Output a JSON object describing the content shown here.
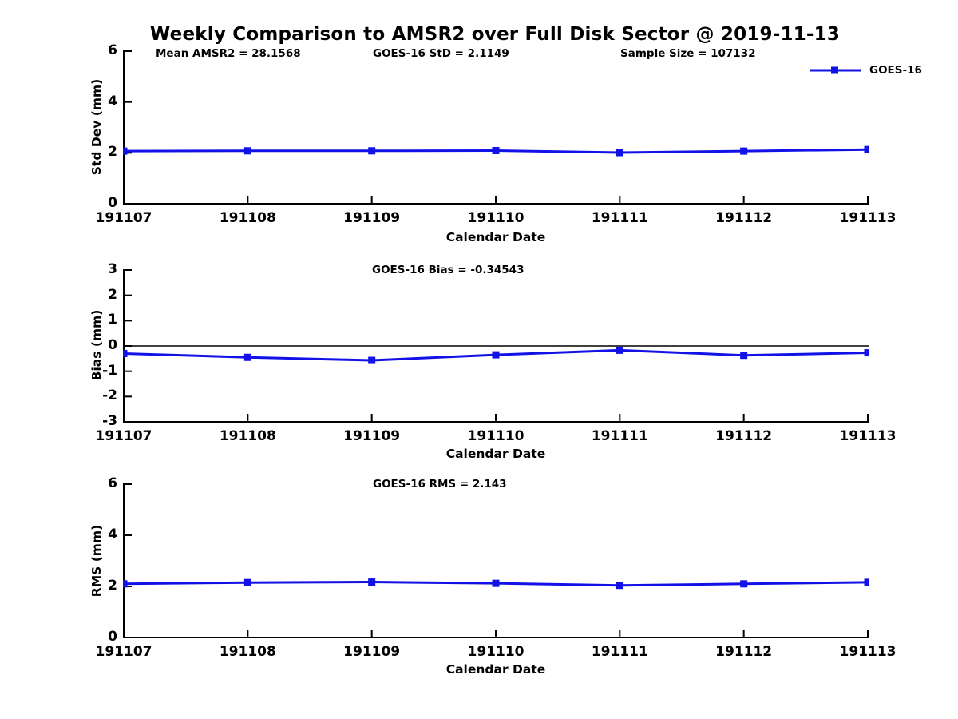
{
  "title": "Weekly Comparison to AMSR2 over Full Disk Sector @ 2019-11-13",
  "header_stats": {
    "mean_amsr2": "Mean AMSR2 = 28.1568",
    "goes_std": "GOES-16 StD = 2.1149",
    "sample_size": "Sample Size = 107132"
  },
  "legend": {
    "label": "GOES-16"
  },
  "colors": {
    "line": "#1212e8",
    "axis": "#000000"
  },
  "chart_data": [
    {
      "type": "line",
      "series_name": "GOES-16",
      "ylabel": "Std Dev (mm)",
      "xlabel": "Calendar Date",
      "ylim": [
        0,
        6
      ],
      "yticks": [
        0,
        2,
        4,
        6
      ],
      "categories": [
        "191107",
        "191108",
        "191109",
        "191110",
        "191111",
        "191112",
        "191113"
      ],
      "values": [
        2.07,
        2.08,
        2.08,
        2.09,
        2.01,
        2.07,
        2.13
      ],
      "annotation": "",
      "zero_line": false,
      "legend_position": "upper right outside",
      "grid": false
    },
    {
      "type": "line",
      "series_name": "GOES-16",
      "ylabel": "Bias (mm)",
      "xlabel": "Calendar Date",
      "ylim": [
        -3,
        3
      ],
      "yticks": [
        -3,
        -2,
        -1,
        0,
        1,
        2,
        3
      ],
      "categories": [
        "191107",
        "191108",
        "191109",
        "191110",
        "191111",
        "191112",
        "191113"
      ],
      "values": [
        -0.3,
        -0.45,
        -0.57,
        -0.35,
        -0.17,
        -0.37,
        -0.27
      ],
      "annotation": "GOES-16 Bias  = -0.34543",
      "zero_line": true,
      "grid": false
    },
    {
      "type": "line",
      "series_name": "GOES-16",
      "ylabel": "RMS (mm)",
      "xlabel": "Calendar Date",
      "ylim": [
        0,
        6
      ],
      "yticks": [
        0,
        2,
        4,
        6
      ],
      "categories": [
        "191107",
        "191108",
        "191109",
        "191110",
        "191111",
        "191112",
        "191113"
      ],
      "values": [
        2.1,
        2.15,
        2.17,
        2.12,
        2.04,
        2.1,
        2.16
      ],
      "annotation": "GOES-16 RMS = 2.143",
      "zero_line": false,
      "grid": false
    }
  ]
}
